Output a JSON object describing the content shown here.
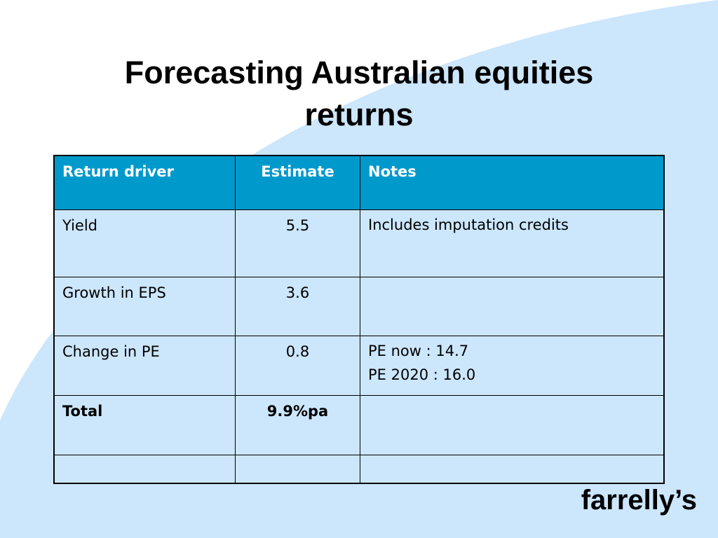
{
  "slide": {
    "title": "Forecasting Australian equities returns",
    "table": {
      "header": [
        "Return driver",
        "Estimate",
        "Notes"
      ],
      "rows": [
        {
          "driver": "Yield",
          "estimate": 5.5,
          "notes": [
            "Includes imputation credits"
          ]
        },
        {
          "driver": "Growth in EPS",
          "estimate": 3.6
        },
        {
          "driver": "Change in PE",
          "estimate": 0.8,
          "notes": [
            "PE now : 14.7",
            "PE 2020 : 16.0"
          ]
        },
        {
          "driver": "Total",
          "estimate": "9.9%pa"
        }
      ]
    },
    "footer": "farrelly’s"
  }
}
